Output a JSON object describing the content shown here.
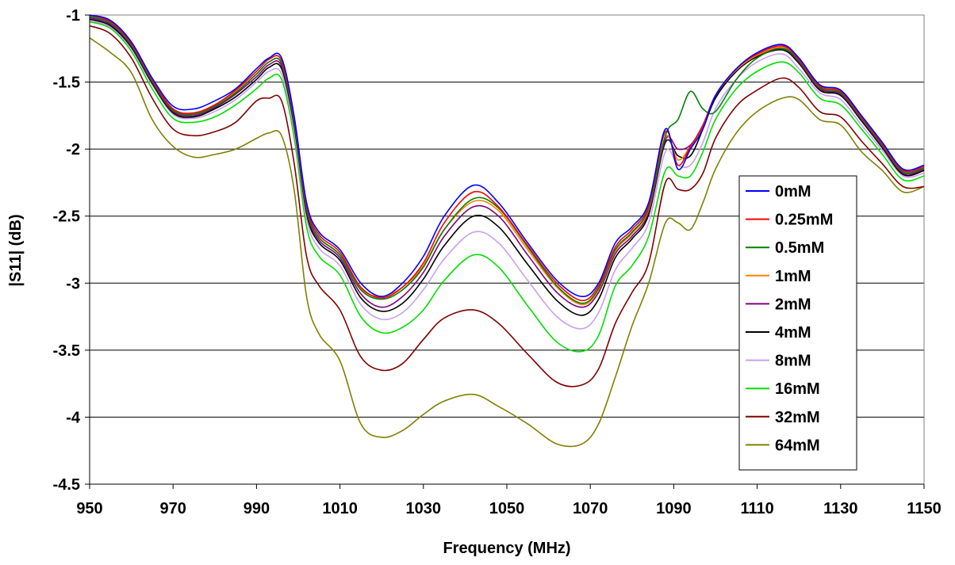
{
  "chart_data": {
    "type": "line",
    "title": "",
    "xlabel": "Frequency (MHz)",
    "ylabel": "|S11| (dB)",
    "xlim": [
      950,
      1150
    ],
    "ylim": [
      -4.5,
      -1
    ],
    "x_ticks": [
      "950",
      "970",
      "990",
      "1010",
      "1030",
      "1050",
      "1070",
      "1090",
      "1110",
      "1130",
      "1150"
    ],
    "y_ticks": [
      "-1",
      "-1.5",
      "-2",
      "-2.5",
      "-3",
      "-3.5",
      "-4",
      "-4.5"
    ],
    "grid": "horizontal",
    "legend_position": "right",
    "x": [
      950,
      955,
      960,
      965,
      970,
      975,
      980,
      985,
      990,
      993,
      996,
      999,
      1002,
      1005,
      1010,
      1015,
      1020,
      1025,
      1030,
      1035,
      1042,
      1048,
      1055,
      1062,
      1068,
      1072,
      1076,
      1080,
      1084,
      1088,
      1091,
      1094,
      1097,
      1100,
      1105,
      1110,
      1116,
      1120,
      1125,
      1130,
      1135,
      1140,
      1145,
      1150
    ],
    "series": [
      {
        "name": "0mM",
        "color": "#0000ff",
        "values": [
          -1.0,
          -1.04,
          -1.2,
          -1.47,
          -1.68,
          -1.7,
          -1.64,
          -1.55,
          -1.4,
          -1.32,
          -1.32,
          -1.75,
          -2.4,
          -2.62,
          -2.75,
          -3.0,
          -3.1,
          -3.0,
          -2.8,
          -2.5,
          -2.27,
          -2.4,
          -2.7,
          -2.98,
          -3.1,
          -3.0,
          -2.7,
          -2.58,
          -2.4,
          -1.85,
          -2.15,
          -2.0,
          -1.85,
          -1.6,
          -1.4,
          -1.28,
          -1.22,
          -1.32,
          -1.52,
          -1.56,
          -1.75,
          -1.95,
          -2.15,
          -2.12
        ]
      },
      {
        "name": "0.25mM",
        "color": "#ff0000",
        "values": [
          -1.0,
          -1.05,
          -1.21,
          -1.48,
          -1.7,
          -1.73,
          -1.67,
          -1.56,
          -1.42,
          -1.33,
          -1.34,
          -1.76,
          -2.42,
          -2.64,
          -2.77,
          -3.03,
          -3.11,
          -3.03,
          -2.85,
          -2.55,
          -2.32,
          -2.43,
          -2.72,
          -3.0,
          -3.13,
          -3.02,
          -2.73,
          -2.6,
          -2.42,
          -1.87,
          -2.12,
          -1.98,
          -1.83,
          -1.6,
          -1.4,
          -1.29,
          -1.23,
          -1.33,
          -1.53,
          -1.57,
          -1.76,
          -1.96,
          -2.16,
          -2.13
        ]
      },
      {
        "name": "0.5mM",
        "color": "#008000",
        "values": [
          -1.01,
          -1.06,
          -1.22,
          -1.49,
          -1.71,
          -1.74,
          -1.68,
          -1.58,
          -1.44,
          -1.35,
          -1.36,
          -1.78,
          -2.44,
          -2.66,
          -2.79,
          -3.05,
          -3.12,
          -3.05,
          -2.88,
          -2.6,
          -2.37,
          -2.44,
          -2.73,
          -3.02,
          -3.15,
          -3.04,
          -2.75,
          -2.62,
          -2.44,
          -1.9,
          -1.78,
          -1.57,
          -1.7,
          -1.72,
          -1.48,
          -1.32,
          -1.25,
          -1.34,
          -1.54,
          -1.58,
          -1.77,
          -1.97,
          -2.17,
          -2.14
        ]
      },
      {
        "name": "1mM",
        "color": "#ff8000",
        "values": [
          -1.01,
          -1.06,
          -1.22,
          -1.49,
          -1.71,
          -1.73,
          -1.67,
          -1.57,
          -1.44,
          -1.35,
          -1.36,
          -1.78,
          -2.44,
          -2.66,
          -2.79,
          -3.04,
          -3.1,
          -3.03,
          -2.87,
          -2.6,
          -2.39,
          -2.46,
          -2.75,
          -3.03,
          -3.16,
          -3.05,
          -2.76,
          -2.63,
          -2.45,
          -1.91,
          -2.08,
          -1.98,
          -1.83,
          -1.6,
          -1.41,
          -1.3,
          -1.24,
          -1.34,
          -1.54,
          -1.58,
          -1.77,
          -1.97,
          -2.17,
          -2.14
        ]
      },
      {
        "name": "2mM",
        "color": "#800080",
        "values": [
          -1.02,
          -1.07,
          -1.23,
          -1.5,
          -1.72,
          -1.75,
          -1.69,
          -1.59,
          -1.46,
          -1.37,
          -1.38,
          -1.8,
          -2.46,
          -2.68,
          -2.81,
          -3.08,
          -3.18,
          -3.1,
          -2.92,
          -2.65,
          -2.43,
          -2.5,
          -2.79,
          -3.07,
          -3.18,
          -3.07,
          -2.78,
          -2.65,
          -2.47,
          -1.93,
          -2.0,
          -1.97,
          -1.82,
          -1.6,
          -1.41,
          -1.3,
          -1.25,
          -1.35,
          -1.55,
          -1.59,
          -1.78,
          -1.98,
          -2.18,
          -2.15
        ]
      },
      {
        "name": "4mM",
        "color": "#000000",
        "values": [
          -1.03,
          -1.08,
          -1.24,
          -1.51,
          -1.73,
          -1.76,
          -1.7,
          -1.61,
          -1.48,
          -1.39,
          -1.4,
          -1.82,
          -2.48,
          -2.7,
          -2.83,
          -3.11,
          -3.21,
          -3.15,
          -2.97,
          -2.72,
          -2.5,
          -2.58,
          -2.86,
          -3.13,
          -3.24,
          -3.12,
          -2.81,
          -2.67,
          -2.49,
          -1.95,
          -2.05,
          -2.05,
          -1.85,
          -1.62,
          -1.42,
          -1.31,
          -1.26,
          -1.36,
          -1.56,
          -1.6,
          -1.79,
          -1.99,
          -2.19,
          -2.16
        ]
      },
      {
        "name": "8mM",
        "color": "#c8a0f0",
        "values": [
          -1.04,
          -1.09,
          -1.25,
          -1.52,
          -1.74,
          -1.77,
          -1.72,
          -1.63,
          -1.5,
          -1.42,
          -1.44,
          -1.86,
          -2.52,
          -2.74,
          -2.87,
          -3.16,
          -3.27,
          -3.22,
          -3.05,
          -2.82,
          -2.62,
          -2.7,
          -2.98,
          -3.25,
          -3.34,
          -3.22,
          -2.9,
          -2.74,
          -2.55,
          -2.02,
          -2.12,
          -2.12,
          -1.95,
          -1.7,
          -1.48,
          -1.35,
          -1.29,
          -1.4,
          -1.58,
          -1.63,
          -1.82,
          -2.01,
          -2.2,
          -2.18
        ]
      },
      {
        "name": "16mM",
        "color": "#00e000",
        "values": [
          -1.05,
          -1.1,
          -1.27,
          -1.55,
          -1.77,
          -1.8,
          -1.76,
          -1.67,
          -1.55,
          -1.47,
          -1.48,
          -1.91,
          -2.58,
          -2.8,
          -2.94,
          -3.25,
          -3.37,
          -3.33,
          -3.2,
          -2.98,
          -2.79,
          -2.88,
          -3.17,
          -3.44,
          -3.51,
          -3.39,
          -3.02,
          -2.87,
          -2.65,
          -2.16,
          -2.2,
          -2.2,
          -2.02,
          -1.78,
          -1.55,
          -1.42,
          -1.35,
          -1.43,
          -1.62,
          -1.67,
          -1.85,
          -2.04,
          -2.23,
          -2.2
        ]
      },
      {
        "name": "32mM",
        "color": "#800000",
        "values": [
          -1.08,
          -1.14,
          -1.32,
          -1.62,
          -1.85,
          -1.9,
          -1.87,
          -1.8,
          -1.64,
          -1.62,
          -1.64,
          -2.1,
          -2.8,
          -3.02,
          -3.2,
          -3.55,
          -3.65,
          -3.6,
          -3.42,
          -3.26,
          -3.2,
          -3.3,
          -3.53,
          -3.74,
          -3.76,
          -3.64,
          -3.3,
          -3.07,
          -2.85,
          -2.25,
          -2.3,
          -2.3,
          -2.18,
          -1.92,
          -1.68,
          -1.56,
          -1.47,
          -1.54,
          -1.72,
          -1.76,
          -1.94,
          -2.11,
          -2.28,
          -2.28
        ]
      },
      {
        "name": "64mM",
        "color": "#808000",
        "values": [
          -1.17,
          -1.28,
          -1.43,
          -1.78,
          -1.98,
          -2.06,
          -2.04,
          -2.0,
          -1.92,
          -1.88,
          -1.9,
          -2.3,
          -3.1,
          -3.38,
          -3.58,
          -4.05,
          -4.15,
          -4.1,
          -3.98,
          -3.88,
          -3.83,
          -3.92,
          -4.05,
          -4.2,
          -4.2,
          -4.05,
          -3.7,
          -3.32,
          -3.0,
          -2.55,
          -2.55,
          -2.6,
          -2.4,
          -2.15,
          -1.88,
          -1.72,
          -1.62,
          -1.63,
          -1.78,
          -1.82,
          -2.02,
          -2.16,
          -2.32,
          -2.28
        ]
      }
    ]
  }
}
